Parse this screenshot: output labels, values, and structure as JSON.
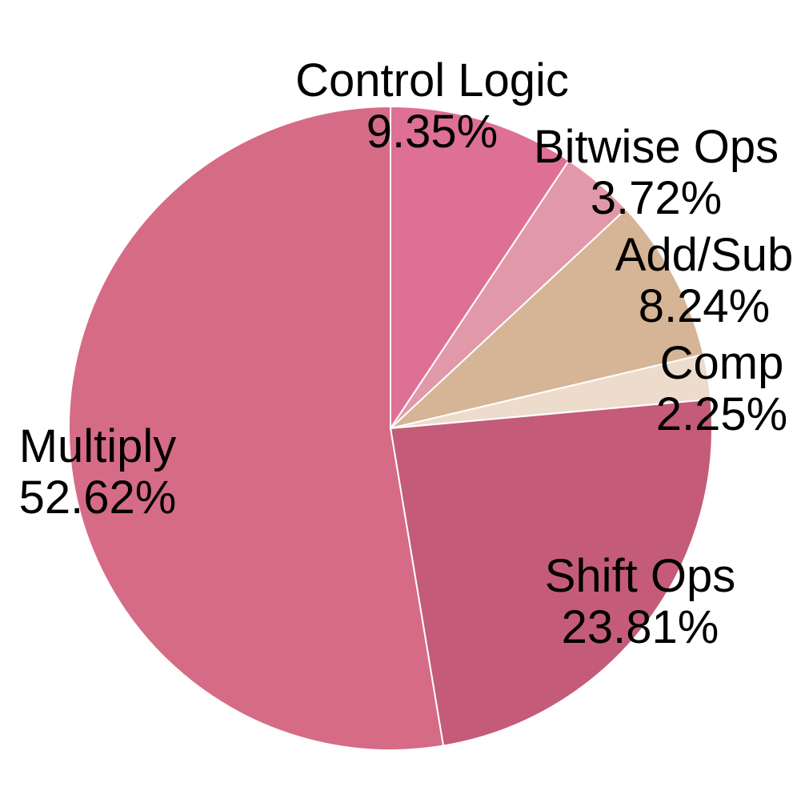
{
  "chart_data": {
    "type": "pie",
    "start_angle_deg": 0,
    "direction": "clockwise",
    "slices": [
      {
        "name": "Control Logic",
        "value": 9.35,
        "label": "9.35%",
        "color": "#dd7094"
      },
      {
        "name": "Bitwise Ops",
        "value": 3.72,
        "label": "3.72%",
        "color": "#e199aa"
      },
      {
        "name": "Add/Sub",
        "value": 8.24,
        "label": "8.24%",
        "color": "#d5b595"
      },
      {
        "name": "Comp",
        "value": 2.25,
        "label": "2.25%",
        "color": "#eddccc"
      },
      {
        "name": "Shift Ops",
        "value": 23.81,
        "label": "23.81%",
        "color": "#c45c79"
      },
      {
        "name": "Multiply",
        "value": 52.62,
        "label": "52.62%",
        "color": "#d66b86"
      }
    ]
  }
}
